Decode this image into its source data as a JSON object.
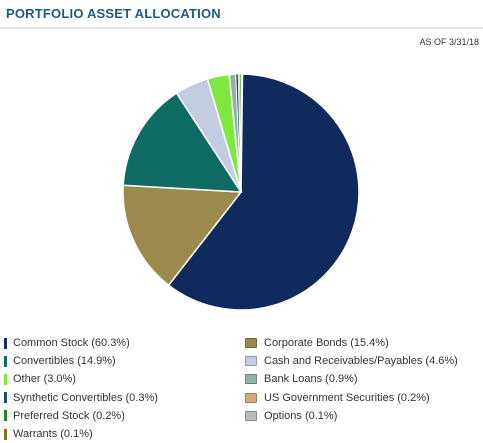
{
  "header": {
    "title": "PORTFOLIO ASSET ALLOCATION",
    "as_of": "AS OF 3/31/18"
  },
  "chart_data": {
    "type": "pie",
    "title": "PORTFOLIO ASSET ALLOCATION",
    "legend_position": "bottom",
    "slices": [
      {
        "label": "Common Stock (60.3%)",
        "name": "Common Stock",
        "value": 60.3,
        "color": "#102a5e"
      },
      {
        "label": "Corporate Bonds (15.4%)",
        "name": "Corporate Bonds",
        "value": 15.4,
        "color": "#9a8a4e"
      },
      {
        "label": "Convertibles (14.9%)",
        "name": "Convertibles",
        "value": 14.9,
        "color": "#0e6b63"
      },
      {
        "label": "Cash and Receivables/Payables (4.6%)",
        "name": "Cash and Receivables/Payables",
        "value": 4.6,
        "color": "#c3cce0"
      },
      {
        "label": "Other (3.0%)",
        "name": "Other",
        "value": 3.0,
        "color": "#7de83e"
      },
      {
        "label": "Bank Loans (0.9%)",
        "name": "Bank Loans",
        "value": 0.9,
        "color": "#8fb3a1"
      },
      {
        "label": "Synthetic Convertibles (0.3%)",
        "name": "Synthetic Convertibles",
        "value": 0.3,
        "color": "#1f4e6b"
      },
      {
        "label": "US Government Securities (0.2%)",
        "name": "US Government Securities",
        "value": 0.2,
        "color": "#d2aa7c"
      },
      {
        "label": "Preferred Stock (0.2%)",
        "name": "Preferred Stock",
        "value": 0.2,
        "color": "#2e7d2e"
      },
      {
        "label": "Options (0.1%)",
        "name": "Options",
        "value": 0.1,
        "color": "#b7bcc1"
      },
      {
        "label": "Warrants (0.1%)",
        "name": "Warrants",
        "value": 0.1,
        "color": "#8a6d1f"
      }
    ],
    "legend": {
      "left_column": [
        {
          "slice": 0,
          "style": "thin"
        },
        {
          "slice": 2,
          "style": "thin"
        },
        {
          "slice": 4,
          "style": "thin"
        },
        {
          "slice": 6,
          "style": "thin"
        },
        {
          "slice": 8,
          "style": "thin"
        },
        {
          "slice": 10,
          "style": "thin"
        }
      ],
      "right_column": [
        {
          "slice": 1,
          "style": "box"
        },
        {
          "slice": 3,
          "style": "box"
        },
        {
          "slice": 5,
          "style": "box"
        },
        {
          "slice": 7,
          "style": "box"
        },
        {
          "slice": 9,
          "style": "box"
        }
      ]
    }
  }
}
